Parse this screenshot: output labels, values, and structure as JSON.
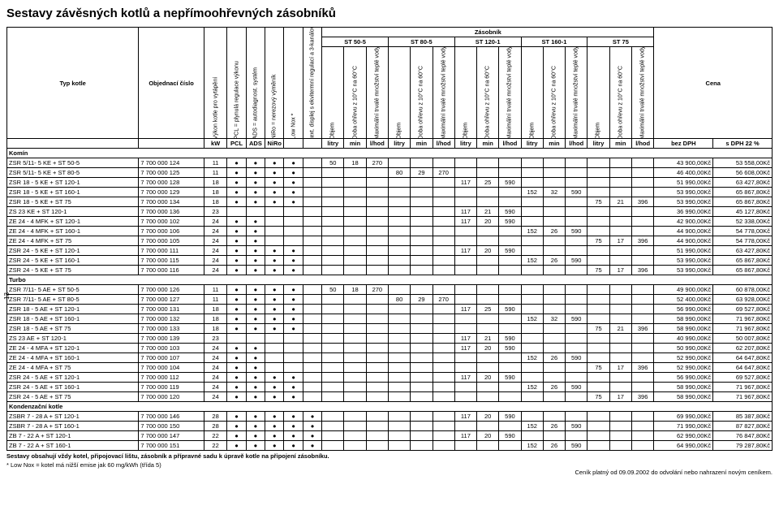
{
  "title": "Sestavy závěsných kotlů a nepřímoohřevných zásobníků",
  "group_header": "Zásobník",
  "tank_groups": [
    "ST 50-5",
    "ST 80-5",
    "ST 120-1",
    "ST 160-1",
    "ST 75"
  ],
  "col_labels": {
    "name": "Typ kotle",
    "order": "Objednací číslo",
    "kw_rot": "Výkon kotle pro vytápění",
    "pcl_rot": "PCL = plynulá regulace výkonu",
    "ads_rot": "ADS = autodiagnost. systém",
    "niro_rot": "NiRo = nerezový výměník",
    "lownox_rot": "Low Nox *",
    "disp_rot": "text. displej s ekvitermní regulací a 3-kanálovými spínacími hodinami",
    "objem": "Objem",
    "doba": "Doba ohřevu z 10°C na 60°C",
    "max": "Maximální trvalé množství teplé vody",
    "cena": "Cena"
  },
  "unit_row": {
    "kw": "kW",
    "pcl": "PCL",
    "ads": "ADS",
    "niro": "NiRo",
    "litry": "litry",
    "min": "min",
    "lhod": "l/hod",
    "bezdph": "bez DPH",
    "sdph": "s DPH 22 %"
  },
  "sections": [
    {
      "name": "Komín",
      "rows": [
        {
          "n": "ZSR 5/11- 5 KE + ST 50-5",
          "o": "7 700 000 124",
          "kw": "11",
          "f": 4,
          "z": {
            "0": [
              "50",
              "18",
              "270"
            ]
          },
          "p1": "43 900,00Kč",
          "p2": "53 558,00Kč"
        },
        {
          "n": "ZSR 5/11- 5 KE + ST 80-5",
          "o": "7 700 000 125",
          "kw": "11",
          "f": 4,
          "z": {
            "1": [
              "80",
              "29",
              "270"
            ]
          },
          "p1": "46 400,00Kč",
          "p2": "56 608,00Kč"
        },
        {
          "n": "ZSR 18 - 5 KE + ST 120-1",
          "o": "7 700 000 128",
          "kw": "18",
          "f": 4,
          "z": {
            "2": [
              "117",
              "25",
              "590"
            ]
          },
          "p1": "51 990,00Kč",
          "p2": "63 427,80Kč"
        },
        {
          "n": "ZSR 18 - 5 KE + ST 160-1",
          "o": "7 700 000 129",
          "kw": "18",
          "f": 4,
          "z": {
            "3": [
              "152",
              "32",
              "590"
            ]
          },
          "p1": "53 990,00Kč",
          "p2": "65 867,80Kč"
        },
        {
          "n": "ZSR 18 - 5 KE + ST 75",
          "o": "7 700 000 134",
          "kw": "18",
          "f": 4,
          "z": {
            "4": [
              "75",
              "21",
              "396"
            ]
          },
          "p1": "53 990,00Kč",
          "p2": "65 867,80Kč"
        },
        {
          "n": "ZS 23 KE + ST 120-1",
          "o": "7 700 000 136",
          "kw": "23",
          "f": 0,
          "z": {
            "2": [
              "117",
              "21",
              "590"
            ]
          },
          "p1": "36 990,00Kč",
          "p2": "45 127,80Kč"
        },
        {
          "n": "ZE 24 - 4 MFK + ST 120-1",
          "o": "7 700 000 102",
          "kw": "24",
          "f": 2,
          "z": {
            "2": [
              "117",
              "20",
              "590"
            ]
          },
          "p1": "42 900,00Kč",
          "p2": "52 338,00Kč"
        },
        {
          "n": "ZE 24 - 4 MFK + ST 160-1",
          "o": "7 700 000 106",
          "kw": "24",
          "f": 2,
          "z": {
            "3": [
              "152",
              "26",
              "590"
            ]
          },
          "p1": "44 900,00Kč",
          "p2": "54 778,00Kč"
        },
        {
          "n": "ZE 24 - 4 MFK + ST 75",
          "o": "7 700 000 105",
          "kw": "24",
          "f": 2,
          "z": {
            "4": [
              "75",
              "17",
              "396"
            ]
          },
          "p1": "44 900,00Kč",
          "p2": "54 778,00Kč"
        },
        {
          "n": "ZSR 24 - 5 KE + ST 120-1",
          "o": "7 700 000 111",
          "kw": "24",
          "f": 4,
          "z": {
            "2": [
              "117",
              "20",
              "590"
            ]
          },
          "p1": "51 990,00Kč",
          "p2": "63 427,80Kč"
        },
        {
          "n": "ZSR 24 - 5 KE + ST 160-1",
          "o": "7 700 000 115",
          "kw": "24",
          "f": 4,
          "z": {
            "3": [
              "152",
              "26",
              "590"
            ]
          },
          "p1": "53 990,00Kč",
          "p2": "65 867,80Kč"
        },
        {
          "n": "ZSR 24 - 5 KE + ST 75",
          "o": "7 700 000 116",
          "kw": "24",
          "f": 4,
          "z": {
            "4": [
              "75",
              "17",
              "396"
            ]
          },
          "p1": "53 990,00Kč",
          "p2": "65 867,80Kč"
        }
      ]
    },
    {
      "name": "Turbo",
      "rows": [
        {
          "n": "ZSR 7/11- 5 AE + ST 50-5",
          "o": "7 700 000 126",
          "kw": "11",
          "f": 4,
          "z": {
            "0": [
              "50",
              "18",
              "270"
            ]
          },
          "p1": "49 900,00Kč",
          "p2": "60 878,00Kč"
        },
        {
          "n": "ZSR 7/11- 5 AE + ST 80-5",
          "o": "7 700 000 127",
          "kw": "11",
          "f": 4,
          "z": {
            "1": [
              "80",
              "29",
              "270"
            ]
          },
          "p1": "52 400,00Kč",
          "p2": "63 928,00Kč"
        },
        {
          "n": "ZSR 18 - 5 AE + ST 120-1",
          "o": "7 700 000 131",
          "kw": "18",
          "f": 4,
          "z": {
            "2": [
              "117",
              "25",
              "590"
            ]
          },
          "p1": "56 990,00Kč",
          "p2": "69 527,80Kč"
        },
        {
          "n": "ZSR 18 - 5 AE + ST 160-1",
          "o": "7 700 000 132",
          "kw": "18",
          "f": 4,
          "z": {
            "3": [
              "152",
              "32",
              "590"
            ]
          },
          "p1": "58 990,00Kč",
          "p2": "71 967,80Kč"
        },
        {
          "n": "ZSR 18 - 5 AE + ST 75",
          "o": "7 700 000 133",
          "kw": "18",
          "f": 4,
          "z": {
            "4": [
              "75",
              "21",
              "396"
            ]
          },
          "p1": "58 990,00Kč",
          "p2": "71 967,80Kč"
        },
        {
          "n": "ZS 23 AE + ST 120-1",
          "o": "7 700 000 139",
          "kw": "23",
          "f": 0,
          "z": {
            "2": [
              "117",
              "21",
              "590"
            ]
          },
          "p1": "40 990,00Kč",
          "p2": "50 007,80Kč"
        },
        {
          "n": "ZE 24 - 4 MFA + ST 120-1",
          "o": "7 700 000 103",
          "kw": "24",
          "f": 2,
          "z": {
            "2": [
              "117",
              "20",
              "590"
            ]
          },
          "p1": "50 990,00Kč",
          "p2": "62 207,80Kč"
        },
        {
          "n": "ZE 24 - 4 MFA + ST 160-1",
          "o": "7 700 000 107",
          "kw": "24",
          "f": 2,
          "z": {
            "3": [
              "152",
              "26",
              "590"
            ]
          },
          "p1": "52 990,00Kč",
          "p2": "64 647,80Kč"
        },
        {
          "n": "ZE 24 - 4 MFA + ST 75",
          "o": "7 700 000 104",
          "kw": "24",
          "f": 2,
          "z": {
            "4": [
              "75",
              "17",
              "396"
            ]
          },
          "p1": "52 990,00Kč",
          "p2": "64 647,80Kč"
        },
        {
          "n": "ZSR 24 - 5 AE + ST 120-1",
          "o": "7 700 000 112",
          "kw": "24",
          "f": 4,
          "z": {
            "2": [
              "117",
              "20",
              "590"
            ]
          },
          "p1": "56 990,00Kč",
          "p2": "69 527,80Kč"
        },
        {
          "n": "ZSR 24 - 5 AE + ST 160-1",
          "o": "7 700 000 119",
          "kw": "24",
          "f": 4,
          "z": {
            "3": [
              "152",
              "26",
              "590"
            ]
          },
          "p1": "58 990,00Kč",
          "p2": "71 967,80Kč"
        },
        {
          "n": "ZSR 24 - 5 AE + ST 75",
          "o": "7 700 000 120",
          "kw": "24",
          "f": 4,
          "z": {
            "4": [
              "75",
              "17",
              "396"
            ]
          },
          "p1": "58 990,00Kč",
          "p2": "71 967,80Kč"
        }
      ]
    },
    {
      "name": "Kondenzační kotle",
      "rows": [
        {
          "n": "ZSBR 7 - 28 A + ST 120-1",
          "o": "7 700 000 146",
          "kw": "28",
          "f": 4,
          "d": true,
          "z": {
            "2": [
              "117",
              "20",
              "590"
            ]
          },
          "p1": "69 990,00Kč",
          "p2": "85 387,80Kč"
        },
        {
          "n": "ZSBR 7 - 28 A + ST 160-1",
          "o": "7 700 000 150",
          "kw": "28",
          "f": 4,
          "d": true,
          "z": {
            "3": [
              "152",
              "26",
              "590"
            ]
          },
          "p1": "71 990,00Kč",
          "p2": "87 827,80Kč"
        },
        {
          "n": "ZB 7 - 22 A + ST 120-1",
          "o": "7 700 000 147",
          "kw": "22",
          "f": 4,
          "d": true,
          "z": {
            "2": [
              "117",
              "20",
              "590"
            ]
          },
          "p1": "62 990,00Kč",
          "p2": "76 847,80Kč"
        },
        {
          "n": "ZB 7 - 22 A + ST 160-1",
          "o": "7 700 000 151",
          "kw": "22",
          "f": 4,
          "d": true,
          "z": {
            "3": [
              "152",
              "26",
              "590"
            ]
          },
          "p1": "64 990,00Kč",
          "p2": "79 287,80Kč"
        }
      ]
    }
  ],
  "footer1": "Sestavy obsahují vždy kotel, připojovací lištu, zásobník a přípravné sadu k úpravě kotle na připojení zásobníku.",
  "footer2": "* Low Nox = kotel má nižší emise jak 60 mg/kWh (třída 5)",
  "footer_right": "Ceník platný od 09.09.2002 do odvolání nebo nahrazení novým ceníkem.",
  "page_num": "13"
}
